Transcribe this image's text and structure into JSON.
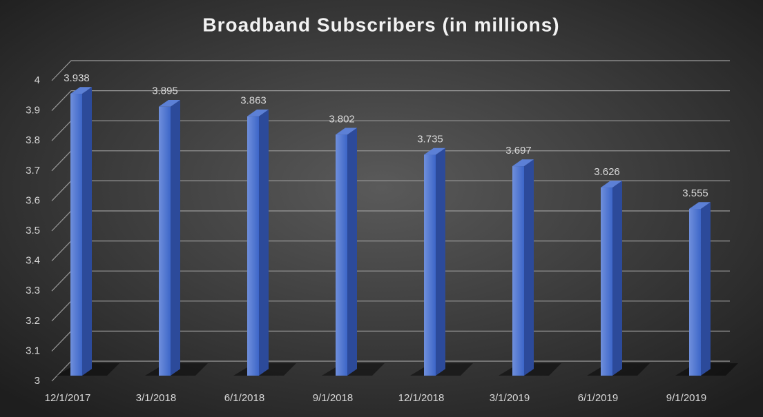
{
  "chart_data": {
    "type": "bar3d",
    "title": "Broadband Subscribers (in millions)",
    "categories": [
      "12/1/2017",
      "3/1/2018",
      "6/1/2018",
      "9/1/2018",
      "12/1/2018",
      "3/1/2019",
      "6/1/2019",
      "9/1/2019"
    ],
    "values": [
      3.938,
      3.895,
      3.863,
      3.802,
      3.735,
      3.697,
      3.626,
      3.555
    ],
    "color": "#4472c4",
    "ylim": [
      3,
      4
    ],
    "yticks": [
      3,
      3.1,
      3.2,
      3.3,
      3.4,
      3.5,
      3.6,
      3.7,
      3.8,
      3.9,
      4
    ],
    "grid": true
  }
}
